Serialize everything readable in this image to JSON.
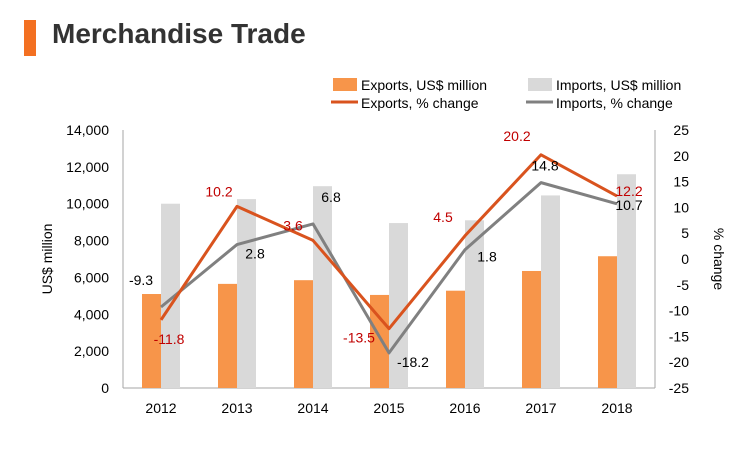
{
  "page": {
    "title": "Merchandise Trade",
    "accent_color": "#F37021"
  },
  "chart_data": {
    "type": "bar",
    "title": "",
    "categories": [
      "2012",
      "2013",
      "2014",
      "2015",
      "2016",
      "2017",
      "2018"
    ],
    "ylabel": "US$ million",
    "y2label": "% change",
    "ylim": [
      0,
      14000
    ],
    "y2lim": [
      -25,
      25
    ],
    "yticks": [
      "0",
      "2,000",
      "4,000",
      "6,000",
      "8,000",
      "10,000",
      "12,000",
      "14,000"
    ],
    "y2ticks": [
      "-25",
      "-20",
      "-15",
      "-10",
      "-5",
      "0",
      "5",
      "10",
      "15",
      "20",
      "25"
    ],
    "grid": false,
    "legend_position": "top-right",
    "bar_series": [
      {
        "name": "Exports, US$ million",
        "color": "#F7954A",
        "values": [
          5100,
          5650,
          5850,
          5050,
          5280,
          6350,
          7150
        ]
      },
      {
        "name": "Imports, US$ million",
        "color": "#D9D9D9",
        "values": [
          10000,
          10250,
          10950,
          8950,
          9100,
          10450,
          11600
        ]
      }
    ],
    "line_series": [
      {
        "name": "Exports, % change",
        "color": "#D9531E",
        "label_color": "#C00000",
        "values": [
          -11.8,
          10.2,
          3.6,
          -13.5,
          4.5,
          20.2,
          12.2
        ]
      },
      {
        "name": "Imports, % change",
        "color": "#808080",
        "label_color": "#000000",
        "values": [
          -9.3,
          2.8,
          6.8,
          -18.2,
          1.8,
          14.8,
          10.7
        ]
      }
    ],
    "data_labels": {
      "exports_pct": [
        "-11.8",
        "10.2",
        "3.6",
        "-13.5",
        "4.5",
        "20.2",
        "12.2"
      ],
      "imports_pct": [
        "-9.3",
        "2.8",
        "6.8",
        "-18.2",
        "1.8",
        "14.8",
        "10.7"
      ]
    }
  }
}
